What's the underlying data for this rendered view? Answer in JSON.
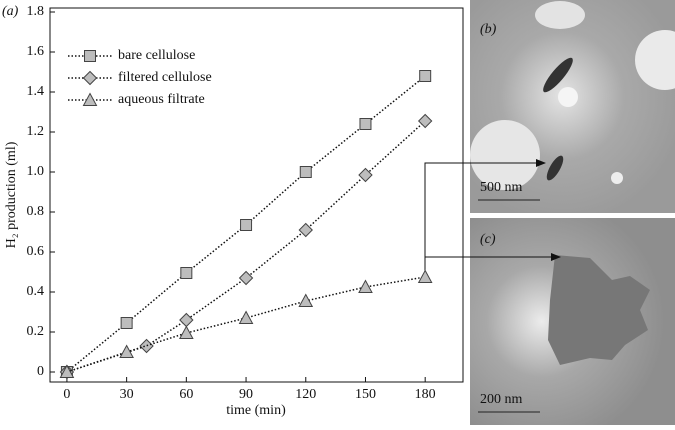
{
  "chart_data": {
    "type": "line",
    "panel_label": "(a)",
    "xlabel": "time (min)",
    "ylabel": "H₂ production (ml)",
    "xlim": [
      -8.5,
      199
    ],
    "ylim": [
      -0.05,
      1.82
    ],
    "xticks": [
      0,
      30,
      60,
      90,
      120,
      150,
      180
    ],
    "yticks": [
      0,
      0.2,
      0.4,
      0.6,
      0.8,
      {
        "value": 1,
        "label": "1.0"
      },
      1.2,
      1.4,
      1.6,
      1.8
    ],
    "legend": "upper left",
    "series": [
      {
        "name": "bare cellulose",
        "marker": "square",
        "color": "#bdbdbd",
        "x": [
          0,
          30,
          60,
          90,
          120,
          150,
          180
        ],
        "values": [
          0,
          0.245,
          0.495,
          0.735,
          1.0,
          1.24,
          1.48
        ]
      },
      {
        "name": "filtered cellulose",
        "marker": "diamond",
        "color": "#bdbdbd",
        "x": [
          0,
          40,
          60,
          90,
          120,
          150,
          180
        ],
        "values": [
          0,
          0.13,
          0.26,
          0.47,
          0.71,
          0.985,
          1.255
        ]
      },
      {
        "name": "aqueous filtrate",
        "marker": "triangle",
        "color": "#bdbdbd",
        "x": [
          0,
          30,
          60,
          90,
          120,
          150,
          180
        ],
        "values": [
          0,
          0.1,
          0.195,
          0.27,
          0.355,
          0.425,
          0.475
        ]
      }
    ]
  },
  "images": [
    {
      "label": "(b)",
      "scale": "500 nm"
    },
    {
      "label": "(c)",
      "scale": "200 nm"
    }
  ]
}
